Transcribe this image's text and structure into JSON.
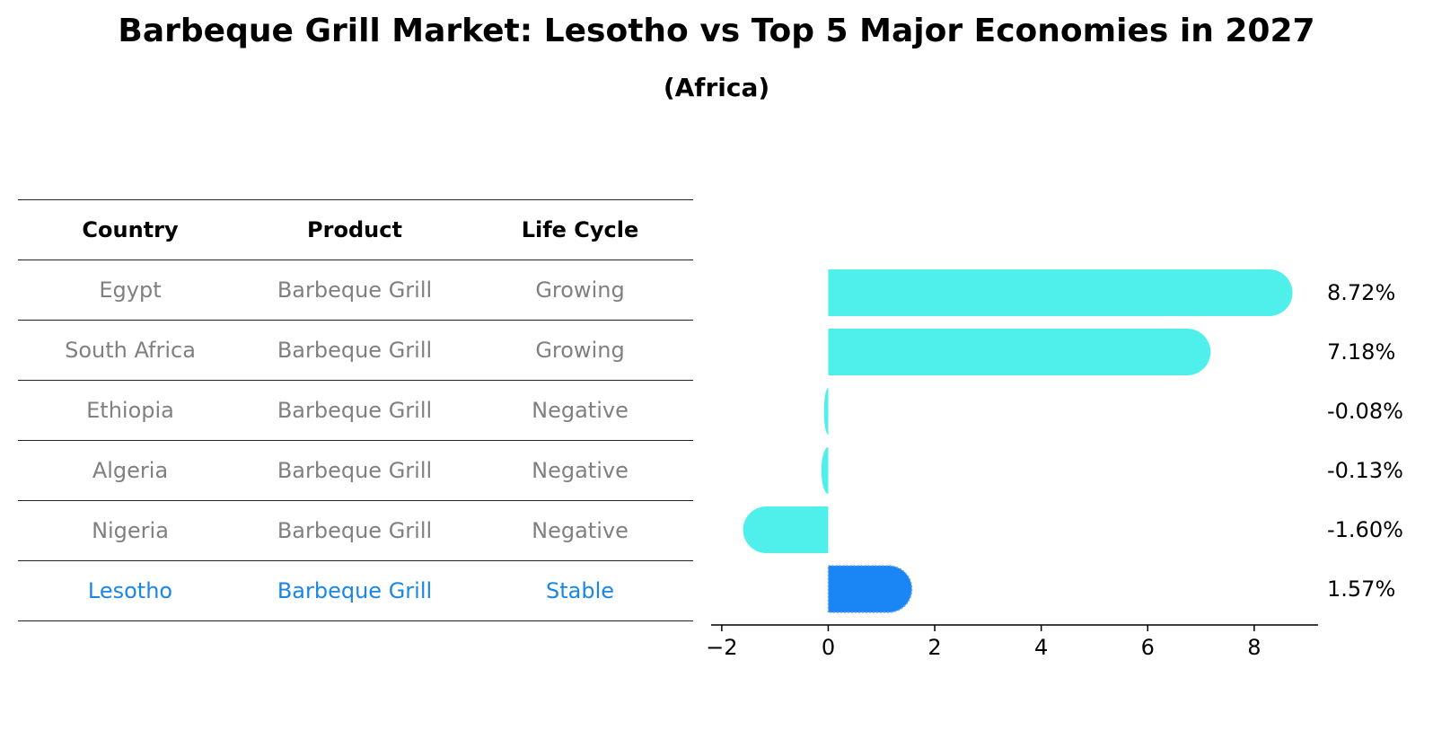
{
  "header": {
    "title": "Barbeque Grill Market: Lesotho vs Top 5 Major Economies in 2027",
    "subtitle": "(Africa)"
  },
  "table": {
    "columns": [
      "Country",
      "Product",
      "Life Cycle"
    ],
    "rows": [
      {
        "country": "Egypt",
        "product": "Barbeque Grill",
        "life_cycle": "Growing"
      },
      {
        "country": "South Africa",
        "product": "Barbeque Grill",
        "life_cycle": "Growing"
      },
      {
        "country": "Ethiopia",
        "product": "Barbeque Grill",
        "life_cycle": "Negative"
      },
      {
        "country": "Algeria",
        "product": "Barbeque Grill",
        "life_cycle": "Negative"
      },
      {
        "country": "Nigeria",
        "product": "Barbeque Grill",
        "life_cycle": "Negative"
      },
      {
        "country": "Lesotho",
        "product": "Barbeque Grill",
        "life_cycle": "Stable"
      }
    ]
  },
  "chart_data": {
    "type": "bar",
    "orientation": "horizontal",
    "categories": [
      "Egypt",
      "South Africa",
      "Ethiopia",
      "Algeria",
      "Nigeria",
      "Lesotho"
    ],
    "values": [
      8.72,
      7.18,
      -0.08,
      -0.13,
      -1.6,
      1.57
    ],
    "value_labels": [
      "8.72%",
      "7.18%",
      "-0.08%",
      "-0.13%",
      "-1.60%",
      "1.57%"
    ],
    "highlight_category": "Lesotho",
    "xlim": [
      -2.2,
      9.2
    ],
    "xticks": [
      -2,
      0,
      2,
      4,
      6,
      8
    ],
    "xtick_labels": [
      "−2",
      "0",
      "2",
      "4",
      "6",
      "8"
    ],
    "grid": false,
    "colors": {
      "bar": "#4ff0eb",
      "highlight": "#1a86f5",
      "highlight_text": "#1a86e6",
      "muted_text": "#808080"
    }
  }
}
